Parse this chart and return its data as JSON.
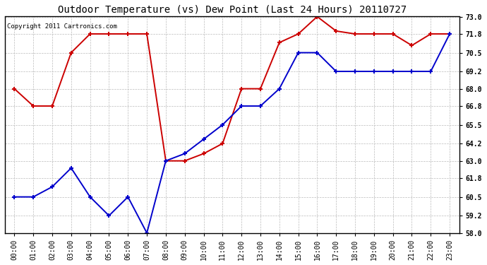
{
  "title": "Outdoor Temperature (vs) Dew Point (Last 24 Hours) 20110727",
  "copyright_text": "Copyright 2011 Cartronics.com",
  "x_labels": [
    "00:00",
    "01:00",
    "02:00",
    "03:00",
    "04:00",
    "05:00",
    "06:00",
    "07:00",
    "08:00",
    "09:00",
    "10:00",
    "11:00",
    "12:00",
    "13:00",
    "14:00",
    "15:00",
    "16:00",
    "17:00",
    "18:00",
    "19:00",
    "20:00",
    "21:00",
    "22:00",
    "23:00"
  ],
  "temp_red": [
    68.0,
    66.8,
    66.8,
    70.5,
    71.8,
    71.8,
    71.8,
    71.8,
    63.0,
    63.0,
    63.5,
    64.2,
    68.0,
    68.0,
    71.2,
    71.8,
    73.0,
    72.0,
    71.8,
    71.8,
    71.8,
    71.0,
    71.8,
    71.8
  ],
  "dew_blue": [
    60.5,
    60.5,
    61.2,
    62.5,
    60.5,
    59.2,
    60.5,
    58.0,
    63.0,
    63.5,
    64.5,
    65.5,
    66.8,
    66.8,
    68.0,
    70.5,
    70.5,
    69.2,
    69.2,
    69.2,
    69.2,
    69.2,
    69.2,
    71.8
  ],
  "temp_color": "#cc0000",
  "dew_color": "#0000cc",
  "ylim": [
    58.0,
    73.0
  ],
  "yticks": [
    58.0,
    59.2,
    60.5,
    61.8,
    63.0,
    64.2,
    65.5,
    66.8,
    68.0,
    69.2,
    70.5,
    71.8,
    73.0
  ],
  "background_color": "#ffffff",
  "plot_bg_color": "#ffffff",
  "grid_color": "#bbbbbb",
  "title_fontsize": 10,
  "copyright_fontsize": 6.5,
  "tick_fontsize": 7,
  "marker": "+",
  "marker_size": 5,
  "line_width": 1.4
}
